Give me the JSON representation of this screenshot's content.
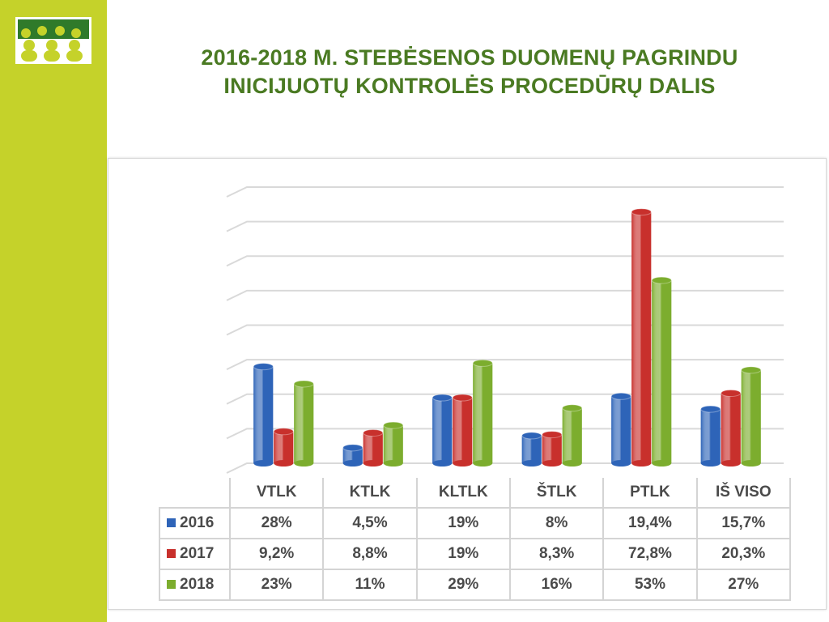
{
  "slide": {
    "title_line1": "2016-2018 M. STEBĖSENOS DUOMENŲ PAGRINDU",
    "title_line2": "INICIJUOTŲ KONTROLĖS PROCEDŪRŲ DALIS",
    "accent_color": "#c5d22a",
    "title_color": "#4a7a22",
    "logo_icon": "people-group-logo-icon"
  },
  "chart_data": {
    "type": "bar",
    "title": "",
    "xlabel": "",
    "ylabel": "",
    "categories": [
      "VTLK",
      "KTLK",
      "KLTLK",
      "ŠTLK",
      "PTLK",
      "IŠ VISO"
    ],
    "ylim": [
      0,
      80
    ],
    "grid": true,
    "legend": "table-bottom",
    "series": [
      {
        "name": "2016",
        "color": "#2e64b8",
        "values": [
          28,
          4.5,
          19,
          8,
          19.4,
          15.7
        ],
        "labels": [
          "28%",
          "4,5%",
          "19%",
          "8%",
          "19,4%",
          "15,7%"
        ]
      },
      {
        "name": "2017",
        "color": "#c8302c",
        "values": [
          9.2,
          8.8,
          19,
          8.3,
          72.8,
          20.3
        ],
        "labels": [
          "9,2%",
          "8,8%",
          "19%",
          "8,3%",
          "72,8%",
          "20,3%"
        ]
      },
      {
        "name": "2018",
        "color": "#7cad2e",
        "values": [
          23,
          11,
          29,
          16,
          53,
          27
        ],
        "labels": [
          "23%",
          "11%",
          "29%",
          "16%",
          "53%",
          "27%"
        ]
      }
    ]
  }
}
